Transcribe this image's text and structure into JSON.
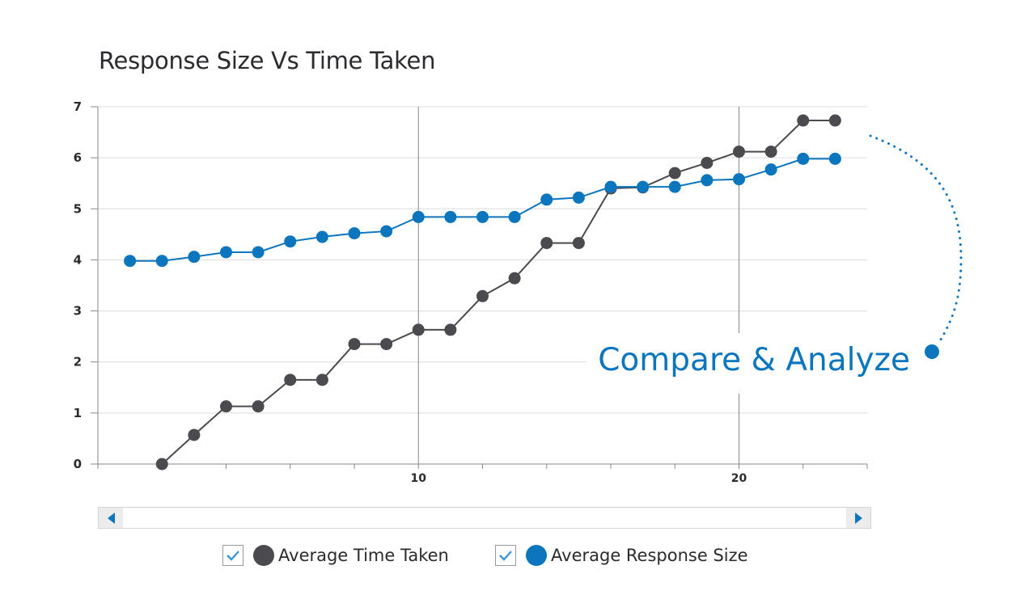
{
  "title": "Response Size Vs Time Taken",
  "callout": {
    "text": "Compare & Analyze"
  },
  "colors": {
    "time": "#4a4a4f",
    "size": "#0b76bd",
    "grid": "#dcdcdc",
    "axis": "#888888",
    "accent": "#0b76bd"
  },
  "chart_data": {
    "type": "line",
    "title": "Response Size Vs Time Taken",
    "xlabel": "",
    "ylabel": "",
    "xlim": [
      0,
      24
    ],
    "ylim": [
      0,
      7
    ],
    "yticks": [
      "0",
      "1",
      "2",
      "3",
      "4",
      "5",
      "6",
      "7"
    ],
    "xticks": [
      {
        "value": 10,
        "label": "10"
      },
      {
        "value": 20,
        "label": "20"
      }
    ],
    "grid": "horizontal",
    "legend_position": "bottom",
    "series": [
      {
        "name": "Average Time Taken",
        "color": "#4a4a4f",
        "x": [
          2,
          3,
          4,
          5,
          6,
          7,
          8,
          9,
          10,
          11,
          12,
          13,
          14,
          15,
          16,
          17,
          18,
          19,
          20,
          21,
          22,
          23
        ],
        "values": [
          0,
          0.57,
          1.13,
          1.13,
          1.65,
          1.65,
          2.35,
          2.35,
          2.63,
          2.63,
          3.29,
          3.64,
          4.33,
          4.33,
          5.4,
          5.42,
          5.7,
          5.9,
          6.12,
          6.12,
          6.73,
          6.73
        ]
      },
      {
        "name": "Average Response Size",
        "color": "#0b76bd",
        "x": [
          1,
          2,
          3,
          4,
          5,
          6,
          7,
          8,
          9,
          10,
          11,
          12,
          13,
          14,
          15,
          16,
          17,
          18,
          19,
          20,
          21,
          22,
          23
        ],
        "values": [
          3.98,
          3.98,
          4.06,
          4.15,
          4.15,
          4.36,
          4.45,
          4.52,
          4.56,
          4.84,
          4.84,
          4.84,
          4.84,
          5.18,
          5.22,
          5.43,
          5.43,
          5.43,
          5.56,
          5.58,
          5.77,
          5.98,
          5.98
        ]
      }
    ]
  },
  "legend": {
    "items": [
      {
        "label": "Average Time Taken",
        "checked": true
      },
      {
        "label": "Average Response Size",
        "checked": true
      }
    ]
  },
  "scrollbar": {
    "left_icon": "chevron-left-icon",
    "right_icon": "chevron-right-icon"
  }
}
